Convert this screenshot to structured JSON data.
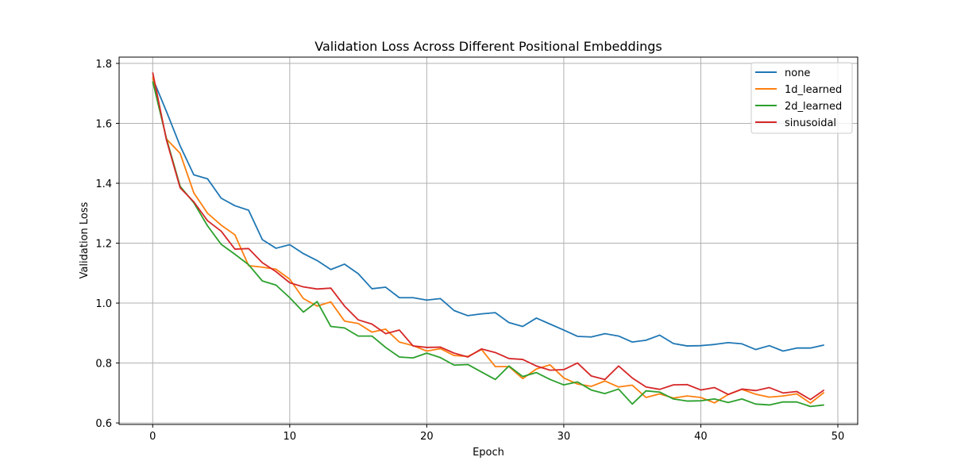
{
  "chart_data": {
    "type": "line",
    "title": "Validation Loss Across Different Positional Embeddings",
    "xlabel": "Epoch",
    "ylabel": "Validation Loss",
    "xlim": [
      -2.45,
      51.45
    ],
    "ylim": [
      0.595,
      1.821
    ],
    "xticks": [
      0,
      10,
      20,
      30,
      40,
      50
    ],
    "yticks": [
      0.6,
      0.8,
      1.0,
      1.2,
      1.4,
      1.6,
      1.8
    ],
    "grid": true,
    "legend_position": "top-right",
    "x": [
      0,
      1,
      2,
      3,
      4,
      5,
      6,
      7,
      8,
      9,
      10,
      11,
      12,
      13,
      14,
      15,
      16,
      17,
      18,
      19,
      20,
      21,
      22,
      23,
      24,
      25,
      26,
      27,
      28,
      29,
      30,
      31,
      32,
      33,
      34,
      35,
      36,
      37,
      38,
      39,
      40,
      41,
      42,
      43,
      44,
      45,
      46,
      47,
      48,
      49
    ],
    "series": [
      {
        "name": "none",
        "color": "#1f77b4",
        "values": [
          1.75,
          1.64,
          1.525,
          1.428,
          1.415,
          1.35,
          1.325,
          1.31,
          1.212,
          1.183,
          1.195,
          1.165,
          1.142,
          1.112,
          1.13,
          1.098,
          1.048,
          1.053,
          1.018,
          1.018,
          1.01,
          1.015,
          0.975,
          0.958,
          0.964,
          0.968,
          0.935,
          0.922,
          0.95,
          0.93,
          0.91,
          0.889,
          0.887,
          0.898,
          0.89,
          0.87,
          0.876,
          0.893,
          0.865,
          0.857,
          0.858,
          0.862,
          0.868,
          0.864,
          0.845,
          0.858,
          0.84,
          0.85,
          0.85,
          0.86
        ]
      },
      {
        "name": "1d_learned",
        "color": "#ff7f0e",
        "values": [
          1.755,
          1.548,
          1.5,
          1.368,
          1.3,
          1.26,
          1.228,
          1.125,
          1.12,
          1.113,
          1.08,
          1.015,
          0.99,
          1.004,
          0.94,
          0.932,
          0.903,
          0.913,
          0.87,
          0.858,
          0.84,
          0.848,
          0.825,
          0.822,
          0.845,
          0.788,
          0.788,
          0.748,
          0.78,
          0.794,
          0.75,
          0.73,
          0.722,
          0.74,
          0.72,
          0.726,
          0.685,
          0.697,
          0.683,
          0.69,
          0.685,
          0.667,
          0.695,
          0.712,
          0.696,
          0.686,
          0.69,
          0.697,
          0.666,
          0.702
        ]
      },
      {
        "name": "2d_learned",
        "color": "#2ca02c",
        "values": [
          1.74,
          1.55,
          1.39,
          1.335,
          1.258,
          1.196,
          1.163,
          1.128,
          1.074,
          1.06,
          1.018,
          0.97,
          1.005,
          0.922,
          0.917,
          0.89,
          0.89,
          0.852,
          0.82,
          0.817,
          0.833,
          0.818,
          0.793,
          0.795,
          0.77,
          0.745,
          0.79,
          0.755,
          0.768,
          0.745,
          0.727,
          0.737,
          0.71,
          0.698,
          0.713,
          0.663,
          0.707,
          0.703,
          0.68,
          0.673,
          0.674,
          0.68,
          0.668,
          0.68,
          0.663,
          0.66,
          0.67,
          0.67,
          0.655,
          0.66
        ]
      },
      {
        "name": "sinusoidal",
        "color": "#d62728",
        "values": [
          1.77,
          1.545,
          1.385,
          1.338,
          1.275,
          1.24,
          1.18,
          1.182,
          1.135,
          1.105,
          1.068,
          1.054,
          1.047,
          1.05,
          0.99,
          0.944,
          0.93,
          0.898,
          0.91,
          0.857,
          0.852,
          0.853,
          0.833,
          0.82,
          0.847,
          0.835,
          0.815,
          0.812,
          0.79,
          0.776,
          0.778,
          0.8,
          0.757,
          0.745,
          0.79,
          0.75,
          0.72,
          0.712,
          0.727,
          0.728,
          0.71,
          0.718,
          0.695,
          0.713,
          0.708,
          0.718,
          0.7,
          0.705,
          0.678,
          0.71
        ]
      }
    ]
  }
}
